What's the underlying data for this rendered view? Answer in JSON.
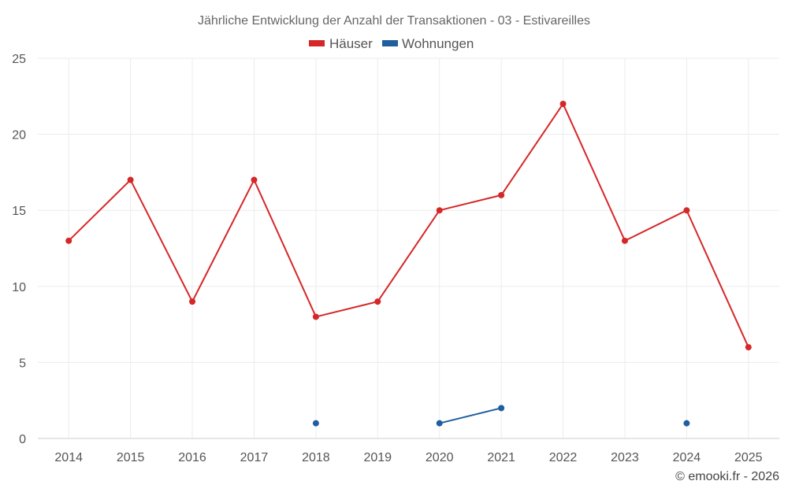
{
  "chart_data": {
    "type": "line",
    "title": "Jährliche Entwicklung der Anzahl der Transaktionen - 03 - Estivareilles",
    "x": [
      "2014",
      "2015",
      "2016",
      "2017",
      "2018",
      "2019",
      "2020",
      "2021",
      "2022",
      "2023",
      "2024",
      "2025"
    ],
    "yticks": [
      "0",
      "5",
      "10",
      "15",
      "20",
      "25"
    ],
    "ylim": [
      0,
      25
    ],
    "grid": true,
    "legend_position": "top-center",
    "series": [
      {
        "name": "Häuser",
        "color": "#d62728",
        "values": [
          13,
          17,
          9,
          17,
          8,
          9,
          15,
          16,
          22,
          13,
          15,
          6
        ]
      },
      {
        "name": "Wohnungen",
        "color": "#1f5f9f",
        "values": [
          null,
          null,
          null,
          null,
          1,
          null,
          1,
          2,
          null,
          null,
          1,
          null
        ]
      }
    ],
    "credit": "© emooki.fr - 2026"
  }
}
